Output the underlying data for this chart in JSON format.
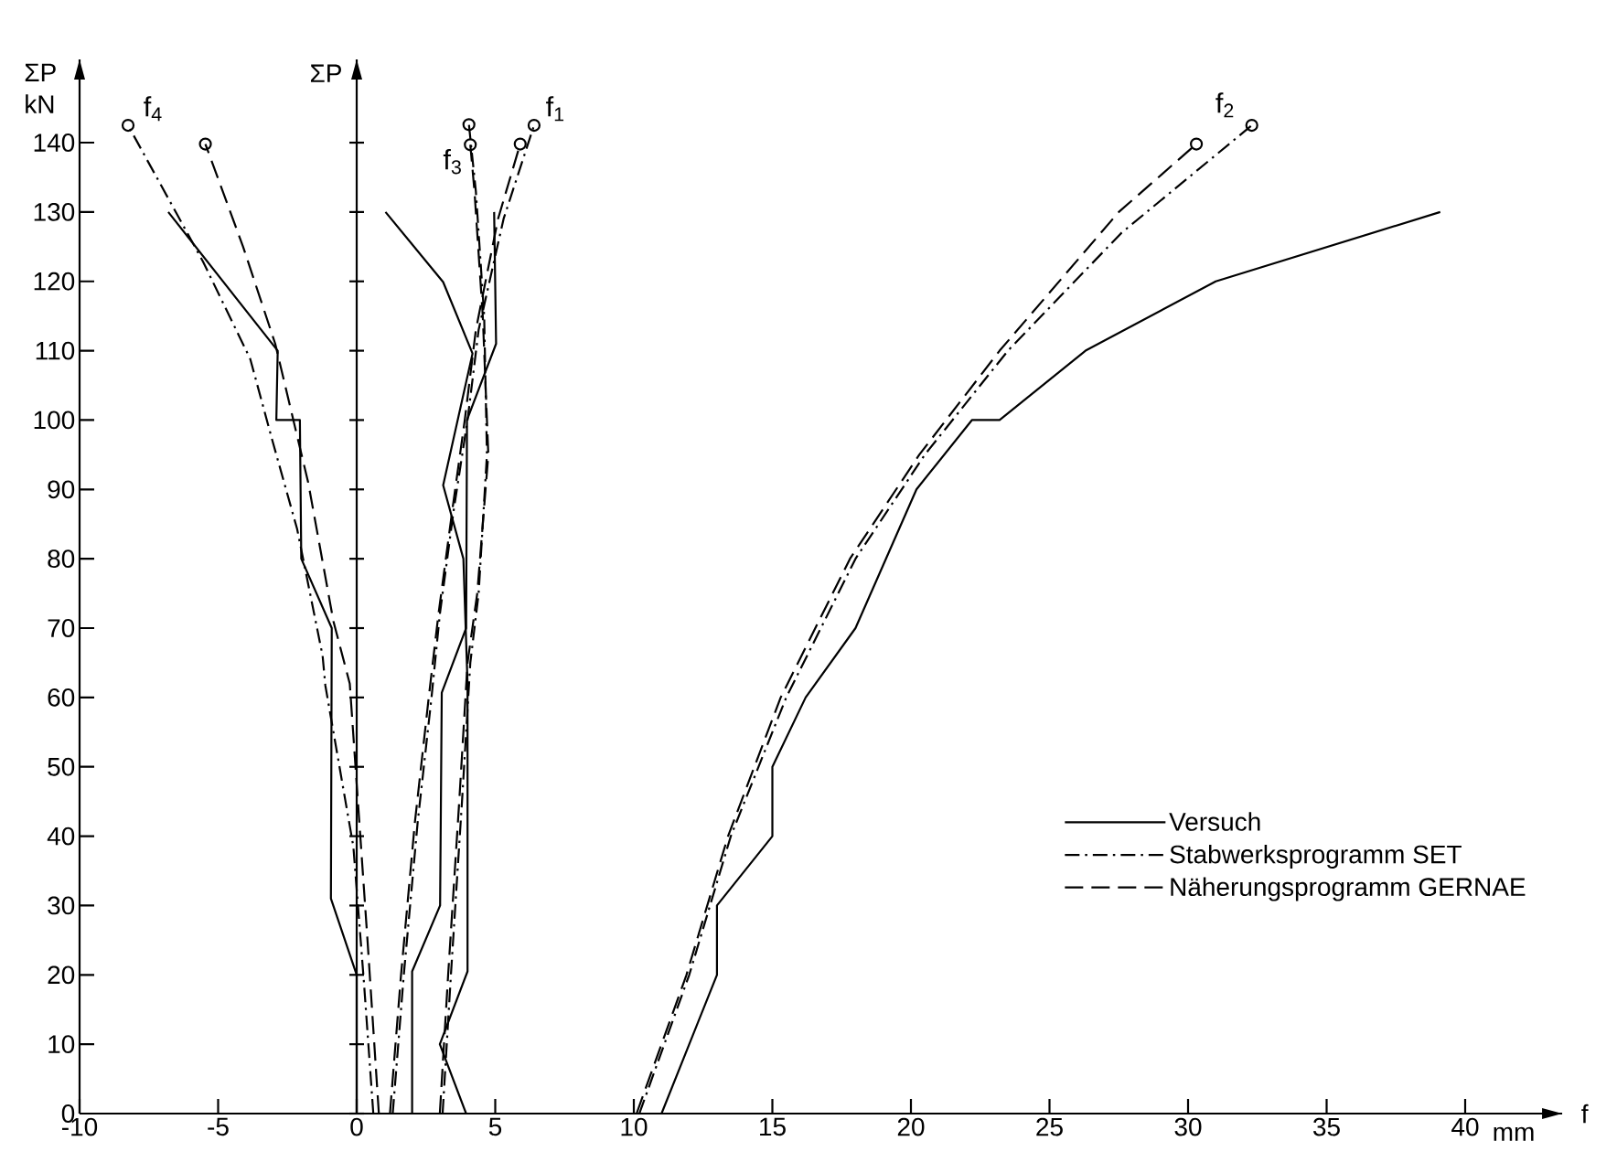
{
  "chart_data": {
    "type": "line",
    "xlabel": "f",
    "ylabel": "ΣP kN",
    "xlim": [
      -10,
      43.5
    ],
    "ylim": [
      0,
      152
    ],
    "xticks": [
      -10,
      -5,
      0,
      5,
      10,
      15,
      20,
      25,
      30,
      35,
      40
    ],
    "yticks": [
      0,
      10,
      20,
      30,
      40,
      50,
      60,
      70,
      80,
      90,
      100,
      110,
      120,
      130,
      140
    ],
    "legend": "bottom right",
    "ref_lines": [
      {
        "axis": "x",
        "value": 0,
        "label": "ΣP"
      }
    ],
    "annotations": [
      "mm",
      {
        "text": "f$_{4}$",
        "x": -8.25,
        "y": 142.5
      },
      {
        "text": "f$_{3}$",
        "x": 4.1,
        "y": 139.7
      },
      {
        "text": "f$_{1}$",
        "x": 6.4,
        "y": 142.5
      },
      {
        "text": "f$_{2}$",
        "x": 32.3,
        "y": 142.5
      }
    ],
    "series": [
      {
        "name": "Versuch",
        "color": "#000000",
        "line_style": "solid",
        "x": [
          11,
          13,
          13,
          15,
          15,
          16.2,
          18,
          20.2,
          22.2,
          23.2,
          26.3,
          31,
          39.1
        ],
        "values": [
          0,
          20,
          30,
          40,
          50,
          60,
          70,
          90,
          100,
          100,
          110,
          120,
          130
        ]
      },
      {
        "name": "Stabwerksprogramm SET",
        "color": "#000000",
        "line_style": "dashdot",
        "x": [
          10.2,
          12,
          13.5,
          15.5,
          18,
          20.5,
          23.5,
          27.6,
          32.3
        ],
        "values": [
          0,
          20,
          40,
          60,
          80,
          95,
          110,
          127,
          142.5
        ]
      },
      {
        "name": "Näherungsprogramm GERNAE",
        "color": "#000000",
        "line_style": "dashed",
        "x": [
          10.1,
          11.9,
          13.4,
          15.3,
          17.8,
          20.3,
          23.2,
          27.5,
          30.3
        ],
        "values": [
          0,
          20,
          40,
          60,
          80,
          95,
          110,
          130,
          139.8
        ]
      },
      {
        "color": "#000000",
        "line_style": "solid",
        "x": [
          0,
          0,
          -0.93,
          -0.9,
          -2.0,
          -2.05,
          -2.9,
          -2.85,
          -6.8
        ],
        "values": [
          0,
          20,
          31,
          70,
          80,
          100,
          100,
          110,
          130
        ]
      },
      {
        "color": "#000000",
        "line_style": "dashdot",
        "x": [
          0.6,
          0.26,
          -0.12,
          -1.13,
          -1.23,
          -2.15,
          -3.06,
          -3.84,
          -5.54,
          -8.25
        ],
        "values": [
          0,
          19,
          38.5,
          61.7,
          66,
          84.3,
          97.3,
          108.8,
          122.8,
          142.5
        ]
      },
      {
        "color": "#000000",
        "line_style": "dashed",
        "x": [
          0.8,
          0.39,
          -0.25,
          -0.84,
          -1.75,
          -2.94,
          -4.1,
          -5.46
        ],
        "values": [
          0,
          25,
          62,
          71,
          91,
          111,
          125,
          139.8
        ]
      },
      {
        "color": "#000000",
        "line_style": "solid",
        "x": [
          3.95,
          3.0,
          4.0,
          4.0,
          3.85,
          3.12,
          4.18,
          3.12,
          1.04
        ],
        "values": [
          0,
          10,
          20.5,
          62,
          80,
          90.6,
          109.6,
          119.9,
          130
        ]
      },
      {
        "color": "#000000",
        "line_style": "solid",
        "x": [
          2.0,
          2.0,
          3.01,
          3.07,
          3.95,
          3.98,
          5.03,
          4.96
        ],
        "values": [
          0,
          20.5,
          30,
          60.7,
          70,
          100,
          111,
          130
        ]
      },
      {
        "color": "#000000",
        "line_style": "dashdot",
        "x": [
          1.3,
          1.7,
          2.2,
          2.7,
          3.0,
          3.5,
          4.0,
          4.4,
          5.3,
          6.4
        ],
        "values": [
          0,
          20,
          42,
          60,
          72,
          87,
          100,
          113,
          129,
          142.5
        ]
      },
      {
        "color": "#000000",
        "line_style": "dashed",
        "x": [
          1.2,
          1.6,
          2.1,
          2.6,
          2.95,
          3.45,
          3.9,
          4.3,
          5.1,
          5.9
        ],
        "values": [
          0,
          20,
          42,
          60,
          72,
          87,
          100,
          113,
          129,
          139.8
        ]
      },
      {
        "color": "#000000",
        "line_style": "dashdot",
        "x": [
          3.1,
          3.4,
          3.8,
          4.1,
          4.4,
          4.7,
          4.6,
          4.3,
          4.05
        ],
        "values": [
          0,
          20,
          45,
          65,
          75,
          95,
          115,
          133,
          142.6
        ]
      },
      {
        "color": "#000000",
        "line_style": "dashed",
        "x": [
          3.0,
          3.3,
          3.7,
          4.0,
          4.35,
          4.75,
          4.55,
          4.25,
          4.1
        ],
        "values": [
          0,
          20,
          45,
          65,
          75,
          95,
          115,
          133,
          139.7
        ]
      },
      {
        "type": "scatter",
        "color": "#000000",
        "marker": "circle",
        "x": [
          32.3,
          30.3,
          -8.25,
          -5.46,
          6.4,
          5.9,
          4.05,
          4.1
        ],
        "values": [
          142.5,
          139.8,
          142.5,
          139.8,
          142.5,
          139.8,
          142.6,
          139.7
        ]
      }
    ]
  }
}
